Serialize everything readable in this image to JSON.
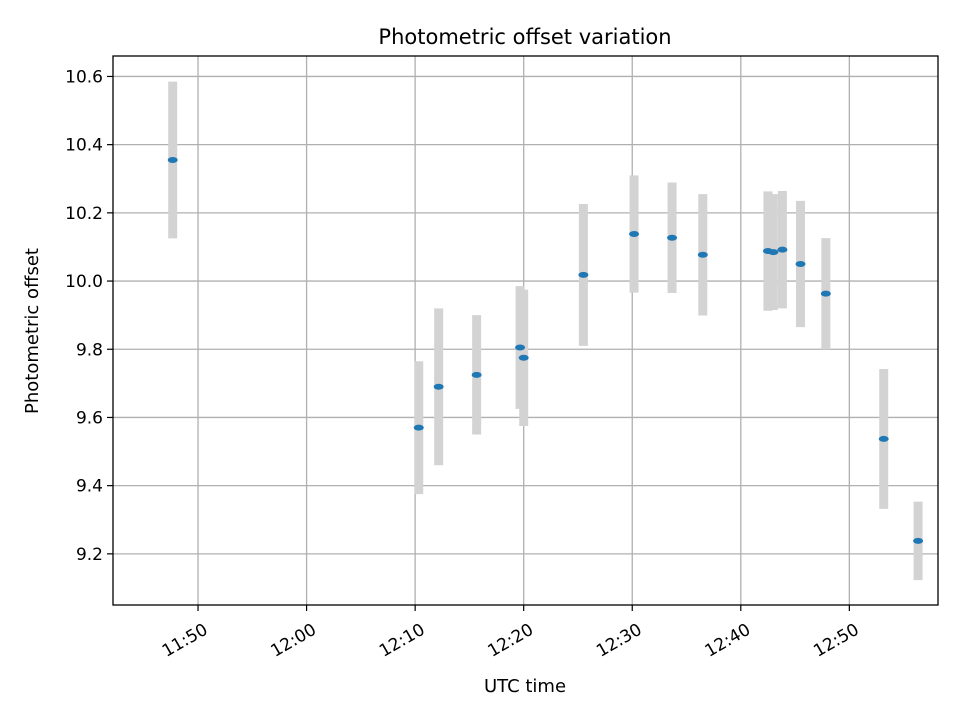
{
  "chart_data": {
    "type": "scatter",
    "title": "Photometric offset variation",
    "xlabel": "UTC time",
    "ylabel": "Photometric offset",
    "x_unit": "UTC time (HH:MM)",
    "xlim": [
      "11:42:10",
      "12:58:10"
    ],
    "ylim": [
      9.05,
      10.66
    ],
    "x_ticks": [
      "11:50",
      "12:00",
      "12:10",
      "12:20",
      "12:30",
      "12:40",
      "12:50"
    ],
    "y_ticks": [
      "9.2",
      "9.4",
      "9.6",
      "9.8",
      "10.0",
      "10.2",
      "10.4",
      "10.6"
    ],
    "grid": true,
    "colors": {
      "point": "#1f77b4",
      "errorbar": "#d3d3d3",
      "grid": "#b0b0b0"
    },
    "points": [
      {
        "x": "11:47:40",
        "y": 10.355,
        "yerr": 0.23
      },
      {
        "x": "12:10:20",
        "y": 9.57,
        "yerr": 0.195
      },
      {
        "x": "12:12:10",
        "y": 9.69,
        "yerr": 0.23
      },
      {
        "x": "12:15:40",
        "y": 9.725,
        "yerr": 0.175
      },
      {
        "x": "12:19:40",
        "y": 9.805,
        "yerr": 0.18
      },
      {
        "x": "12:20:00",
        "y": 9.775,
        "yerr": 0.2
      },
      {
        "x": "12:25:30",
        "y": 10.018,
        "yerr": 0.208
      },
      {
        "x": "12:30:10",
        "y": 10.138,
        "yerr": 0.172
      },
      {
        "x": "12:33:40",
        "y": 10.127,
        "yerr": 0.162
      },
      {
        "x": "12:36:30",
        "y": 10.077,
        "yerr": 0.178
      },
      {
        "x": "12:42:30",
        "y": 10.088,
        "yerr": 0.175
      },
      {
        "x": "12:43:00",
        "y": 10.085,
        "yerr": 0.17
      },
      {
        "x": "12:43:50",
        "y": 10.092,
        "yerr": 0.172
      },
      {
        "x": "12:45:30",
        "y": 10.05,
        "yerr": 0.185
      },
      {
        "x": "12:47:50",
        "y": 9.963,
        "yerr": 0.163
      },
      {
        "x": "12:53:10",
        "y": 9.537,
        "yerr": 0.205
      },
      {
        "x": "12:56:20",
        "y": 9.238,
        "yerr": 0.115
      }
    ]
  }
}
